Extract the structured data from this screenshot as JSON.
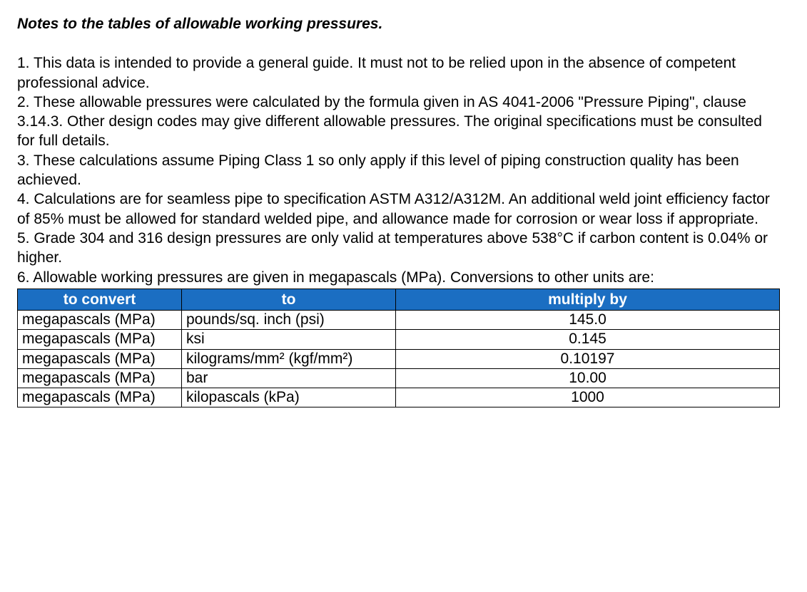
{
  "title": "Notes to the tables of allowable working pressures.",
  "notes": [
    "1. This data is intended to provide a general guide. It must not to be relied upon in the absence of competent professional advice.",
    "2. These allowable pressures were calculated by the formula given in AS 4041-2006 \"Pressure Piping\", clause 3.14.3. Other design codes may give different allowable pressures. The original specifications must be consulted for full details.",
    "3. These calculations assume Piping Class 1 so only apply if this level of piping construction quality has been achieved.",
    "4. Calculations are for seamless pipe to specification ASTM A312/A312M. An additional weld joint efficiency factor of 85% must be allowed for standard welded pipe, and allowance made for corrosion or wear loss if appropriate.",
    "5. Grade 304 and 316 design pressures are only valid at temperatures above 538°C if carbon content is 0.04% or higher.",
    "6. Allowable working pressures are given in megapascals (MPa). Conversions to other units are:"
  ],
  "table": {
    "header_bg": "#1b6ec2",
    "header_fg": "#ffffff",
    "columns": [
      "to convert",
      "to",
      "multiply by"
    ],
    "rows": [
      [
        "megapascals (MPa)",
        "pounds/sq. inch (psi)",
        "145.0"
      ],
      [
        "megapascals (MPa)",
        "ksi",
        "0.145"
      ],
      [
        "megapascals (MPa)",
        "kilograms/mm² (kgf/mm²)",
        "0.10197"
      ],
      [
        "megapascals (MPa)",
        "bar",
        "10.00"
      ],
      [
        "megapascals (MPa)",
        "kilopascals (kPa)",
        "1000"
      ]
    ]
  }
}
